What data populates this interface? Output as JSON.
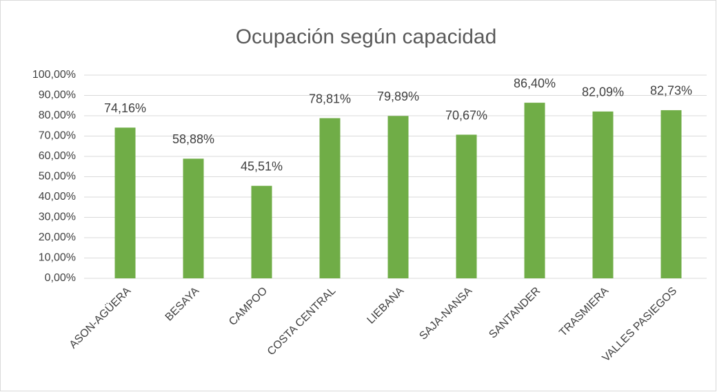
{
  "chart_data": {
    "type": "bar",
    "title": "Ocupación según capacidad",
    "categories": [
      "ASON-AGÜERA",
      "BESAYA",
      "CAMPOO",
      "COSTA CENTRAL",
      "LIEBANA",
      "SAJA-NANSA",
      "SANTANDER",
      "TRASMIERA",
      "VALLES PASIEGOS"
    ],
    "values": [
      74.16,
      58.88,
      45.51,
      78.81,
      79.89,
      70.67,
      86.4,
      82.09,
      82.73
    ],
    "value_labels": [
      "74,16%",
      "58,88%",
      "45,51%",
      "78,81%",
      "79,89%",
      "70,67%",
      "86,40%",
      "82,09%",
      "82,73%"
    ],
    "color": "#70ad47",
    "ylim": [
      0,
      100
    ],
    "yticks": [
      {
        "value": 0,
        "label": "0,00%"
      },
      {
        "value": 10,
        "label": "10,00%"
      },
      {
        "value": 20,
        "label": "20,00%"
      },
      {
        "value": 30,
        "label": "30,00%"
      },
      {
        "value": 40,
        "label": "40,00%"
      },
      {
        "value": 50,
        "label": "50,00%"
      },
      {
        "value": 60,
        "label": "60,00%"
      },
      {
        "value": 70,
        "label": "70,00%"
      },
      {
        "value": 80,
        "label": "80,00%"
      },
      {
        "value": 90,
        "label": "90,00%"
      },
      {
        "value": 100,
        "label": "100,00%"
      }
    ],
    "grid": true
  }
}
